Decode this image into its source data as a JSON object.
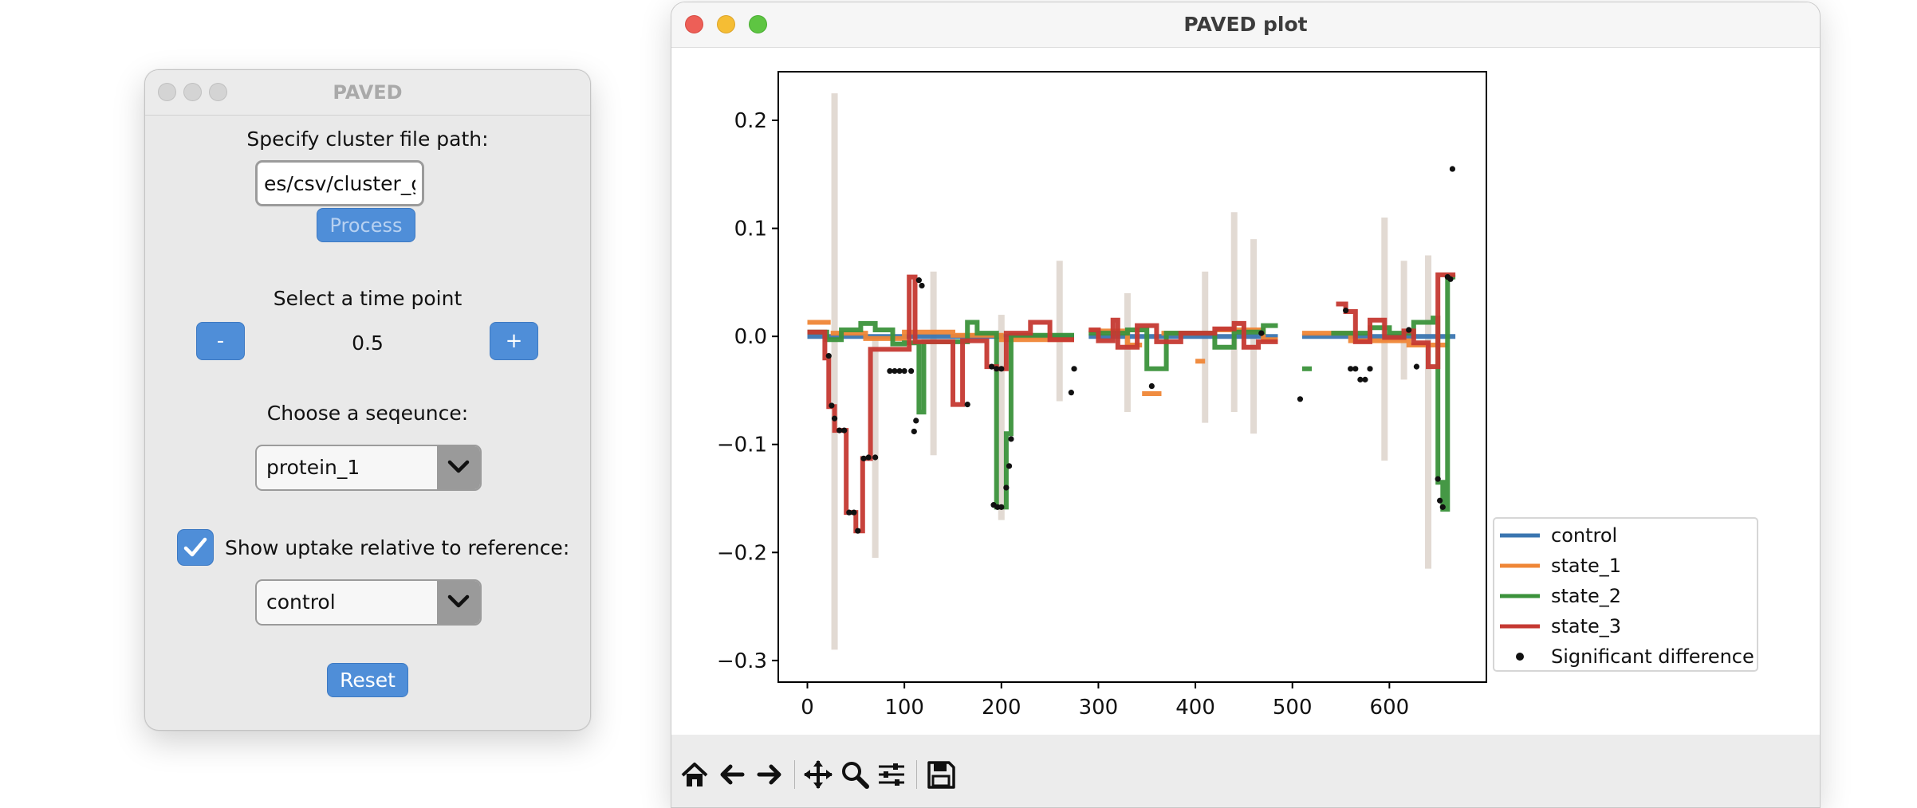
{
  "control_window": {
    "title": "PAVED",
    "cluster_label": "Specify cluster file path:",
    "cluster_path_value": "es/csv/cluster_g.csv",
    "process_label": "Process",
    "time_label": "Select a time point",
    "minus_label": "-",
    "time_value": "0.5",
    "plus_label": "+",
    "sequence_label": "Choose a seqeunce:",
    "sequence_selected": "protein_1",
    "relative_checked": true,
    "relative_label": "Show uptake relative to reference:",
    "reference_selected": "control",
    "reset_label": "Reset"
  },
  "plot_window": {
    "title": "PAVED plot",
    "toolbar": [
      "home-icon",
      "back-arrow-icon",
      "forward-arrow-icon",
      "pan-icon",
      "zoom-icon",
      "configure-subplots-icon",
      "save-icon"
    ]
  },
  "chart_data": {
    "type": "line",
    "title": "",
    "xlabel": "",
    "ylabel": "",
    "xlim": [
      -30,
      700
    ],
    "ylim": [
      -0.32,
      0.245
    ],
    "xticks": [
      0,
      100,
      200,
      300,
      400,
      500,
      600
    ],
    "yticks": [
      0.2,
      0.1,
      0.0,
      -0.1,
      -0.2,
      -0.3
    ],
    "ytick_labels": [
      "0.2",
      "0.1",
      "0.0",
      "−0.1",
      "−0.2",
      "−0.3"
    ],
    "grid": false,
    "legend_position": "outside-right-bottom",
    "colors": {
      "control": "#3a75b0",
      "state_1": "#ef8636",
      "state_2": "#3b923b",
      "state_3": "#c53932",
      "significant": "#111111",
      "band": "#bfae9e"
    },
    "series": [
      {
        "name": "control",
        "segments": [
          [
            [
              0,
              0.0
            ],
            [
              275,
              0.0
            ]
          ],
          [
            [
              290,
              0.0
            ],
            [
              485,
              0.0
            ]
          ],
          [
            [
              510,
              0.0
            ],
            [
              668,
              0.0
            ]
          ]
        ]
      },
      {
        "name": "state_1",
        "segments": [
          [
            [
              0,
              0.013
            ],
            [
              24,
              0.013
            ]
          ],
          [
            [
              24,
              0.003
            ],
            [
              60,
              0.003
            ],
            [
              60,
              -0.002
            ],
            [
              100,
              -0.002
            ],
            [
              100,
              0.004
            ],
            [
              150,
              0.004
            ],
            [
              150,
              0.001
            ],
            [
              200,
              0.001
            ],
            [
              200,
              -0.003
            ],
            [
              275,
              -0.003
            ]
          ],
          [
            [
              290,
              0.005
            ],
            [
              330,
              0.005
            ],
            [
              330,
              -0.008
            ],
            [
              345,
              -0.008
            ]
          ],
          [
            [
              345,
              -0.053
            ],
            [
              365,
              -0.053
            ]
          ],
          [
            [
              365,
              0.003
            ],
            [
              400,
              0.003
            ]
          ],
          [
            [
              400,
              -0.023
            ],
            [
              410,
              -0.023
            ]
          ],
          [
            [
              420,
              0.006
            ],
            [
              470,
              0.006
            ],
            [
              470,
              -0.003
            ],
            [
              485,
              -0.003
            ]
          ],
          [
            [
              510,
              0.003
            ],
            [
              560,
              0.003
            ],
            [
              560,
              -0.004
            ],
            [
              620,
              -0.004
            ],
            [
              620,
              -0.008
            ],
            [
              660,
              -0.008
            ]
          ]
        ]
      },
      {
        "name": "state_2",
        "segments": [
          [
            [
              0,
              0.004
            ],
            [
              20,
              0.004
            ],
            [
              20,
              -0.003
            ],
            [
              35,
              -0.003
            ],
            [
              35,
              0.006
            ],
            [
              55,
              0.006
            ],
            [
              55,
              0.012
            ],
            [
              70,
              0.012
            ],
            [
              70,
              0.006
            ],
            [
              88,
              0.006
            ],
            [
              88,
              -0.007
            ],
            [
              100,
              -0.007
            ],
            [
              100,
              -0.006
            ],
            [
              115,
              -0.006
            ],
            [
              115,
              -0.07
            ],
            [
              120,
              -0.07
            ],
            [
              120,
              -0.005
            ],
            [
              165,
              -0.005
            ],
            [
              165,
              0.013
            ],
            [
              175,
              0.013
            ],
            [
              175,
              0.003
            ],
            [
              195,
              0.003
            ],
            [
              195,
              -0.158
            ],
            [
              205,
              -0.158
            ],
            [
              205,
              -0.09
            ],
            [
              210,
              -0.09
            ],
            [
              210,
              0.001
            ],
            [
              275,
              0.001
            ]
          ],
          [
            [
              290,
              0.003
            ],
            [
              330,
              0.003
            ],
            [
              330,
              0.006
            ],
            [
              350,
              0.006
            ],
            [
              350,
              -0.03
            ],
            [
              370,
              -0.03
            ],
            [
              370,
              0.003
            ],
            [
              420,
              0.003
            ],
            [
              420,
              -0.01
            ],
            [
              440,
              -0.01
            ],
            [
              440,
              0.004
            ],
            [
              470,
              0.004
            ],
            [
              470,
              0.01
            ],
            [
              485,
              0.01
            ]
          ],
          [
            [
              510,
              -0.03
            ],
            [
              520,
              -0.03
            ]
          ],
          [
            [
              540,
              0.003
            ],
            [
              580,
              0.003
            ],
            [
              580,
              0.008
            ],
            [
              600,
              0.008
            ],
            [
              600,
              0.003
            ],
            [
              625,
              0.003
            ],
            [
              625,
              0.013
            ],
            [
              645,
              0.013
            ],
            [
              645,
              0.017
            ],
            [
              650,
              0.017
            ],
            [
              650,
              -0.135
            ],
            [
              655,
              -0.135
            ],
            [
              655,
              -0.16
            ],
            [
              660,
              -0.16
            ],
            [
              660,
              0.055
            ],
            [
              668,
              0.055
            ]
          ]
        ]
      },
      {
        "name": "state_3",
        "segments": [
          [
            [
              0,
              0.004
            ],
            [
              18,
              0.004
            ],
            [
              18,
              -0.02
            ],
            [
              22,
              -0.02
            ],
            [
              22,
              -0.065
            ],
            [
              28,
              -0.065
            ],
            [
              28,
              -0.087
            ],
            [
              40,
              -0.087
            ],
            [
              40,
              -0.163
            ],
            [
              50,
              -0.163
            ],
            [
              50,
              -0.18
            ],
            [
              57,
              -0.18
            ],
            [
              57,
              -0.113
            ],
            [
              65,
              -0.113
            ],
            [
              65,
              -0.012
            ],
            [
              105,
              -0.012
            ],
            [
              105,
              0.055
            ],
            [
              111,
              0.055
            ],
            [
              111,
              -0.005
            ],
            [
              150,
              -0.005
            ],
            [
              150,
              -0.063
            ],
            [
              160,
              -0.063
            ],
            [
              160,
              -0.004
            ],
            [
              185,
              -0.004
            ],
            [
              185,
              -0.028
            ],
            [
              195,
              -0.028
            ],
            [
              195,
              -0.03
            ],
            [
              205,
              -0.03
            ],
            [
              205,
              0.003
            ],
            [
              230,
              0.003
            ],
            [
              230,
              0.013
            ],
            [
              250,
              0.013
            ],
            [
              250,
              -0.003
            ],
            [
              275,
              -0.003
            ]
          ],
          [
            [
              290,
              0.006
            ],
            [
              300,
              0.006
            ],
            [
              300,
              -0.004
            ],
            [
              315,
              -0.004
            ],
            [
              315,
              0.015
            ],
            [
              320,
              0.015
            ],
            [
              320,
              -0.01
            ],
            [
              340,
              -0.01
            ],
            [
              340,
              0.01
            ],
            [
              360,
              0.01
            ],
            [
              360,
              -0.005
            ],
            [
              385,
              -0.005
            ],
            [
              385,
              0.003
            ],
            [
              420,
              0.003
            ],
            [
              420,
              0.007
            ],
            [
              440,
              0.007
            ],
            [
              440,
              0.012
            ],
            [
              450,
              0.012
            ],
            [
              450,
              -0.01
            ],
            [
              465,
              -0.01
            ],
            [
              465,
              -0.005
            ],
            [
              485,
              -0.005
            ]
          ],
          [
            [
              545,
              0.03
            ],
            [
              555,
              0.03
            ],
            [
              555,
              0.023
            ],
            [
              565,
              0.023
            ],
            [
              565,
              -0.005
            ],
            [
              580,
              -0.005
            ],
            [
              580,
              0.015
            ],
            [
              595,
              0.015
            ],
            [
              595,
              -0.001
            ],
            [
              615,
              -0.001
            ],
            [
              615,
              0.005
            ],
            [
              625,
              0.005
            ],
            [
              625,
              -0.006
            ],
            [
              640,
              -0.006
            ],
            [
              640,
              -0.028
            ],
            [
              650,
              -0.028
            ],
            [
              650,
              0.057
            ],
            [
              668,
              0.057
            ]
          ]
        ]
      }
    ],
    "significant_points": [
      [
        22,
        -0.018
      ],
      [
        25,
        -0.064
      ],
      [
        28,
        -0.076
      ],
      [
        33,
        -0.087
      ],
      [
        38,
        -0.087
      ],
      [
        43,
        -0.163
      ],
      [
        48,
        -0.163
      ],
      [
        52,
        -0.18
      ],
      [
        58,
        -0.113
      ],
      [
        63,
        -0.112
      ],
      [
        70,
        -0.112
      ],
      [
        85,
        -0.032
      ],
      [
        90,
        -0.032
      ],
      [
        95,
        -0.032
      ],
      [
        100,
        -0.032
      ],
      [
        107,
        -0.032
      ],
      [
        110,
        -0.088
      ],
      [
        112,
        -0.078
      ],
      [
        115,
        0.052
      ],
      [
        118,
        0.047
      ],
      [
        165,
        -0.063
      ],
      [
        190,
        -0.028
      ],
      [
        195,
        -0.03
      ],
      [
        200,
        -0.03
      ],
      [
        192,
        -0.156
      ],
      [
        196,
        -0.158
      ],
      [
        200,
        -0.158
      ],
      [
        205,
        -0.14
      ],
      [
        208,
        -0.12
      ],
      [
        210,
        -0.095
      ],
      [
        275,
        -0.03
      ],
      [
        272,
        -0.052
      ],
      [
        355,
        -0.046
      ],
      [
        468,
        0.003
      ],
      [
        508,
        -0.058
      ],
      [
        555,
        0.024
      ],
      [
        560,
        -0.03
      ],
      [
        565,
        -0.03
      ],
      [
        570,
        -0.04
      ],
      [
        575,
        -0.04
      ],
      [
        580,
        -0.03
      ],
      [
        620,
        0.006
      ],
      [
        628,
        -0.028
      ],
      [
        650,
        -0.132
      ],
      [
        652,
        -0.152
      ],
      [
        655,
        -0.158
      ],
      [
        660,
        0.055
      ],
      [
        663,
        0.053
      ],
      [
        665,
        0.155
      ]
    ],
    "uncertainty_bands": [
      [
        28,
        0.225,
        -0.29
      ],
      [
        70,
        0.0,
        -0.205
      ],
      [
        130,
        0.06,
        -0.11
      ],
      [
        200,
        0.02,
        -0.17
      ],
      [
        260,
        0.07,
        -0.06
      ],
      [
        330,
        0.04,
        -0.07
      ],
      [
        410,
        0.06,
        -0.08
      ],
      [
        440,
        0.115,
        -0.07
      ],
      [
        460,
        0.09,
        -0.09
      ],
      [
        595,
        0.11,
        -0.115
      ],
      [
        615,
        0.07,
        -0.04
      ],
      [
        640,
        0.075,
        -0.215
      ]
    ],
    "legend": [
      {
        "label": "control",
        "kind": "line",
        "color": "#3a75b0"
      },
      {
        "label": "state_1",
        "kind": "line",
        "color": "#ef8636"
      },
      {
        "label": "state_2",
        "kind": "line",
        "color": "#3b923b"
      },
      {
        "label": "state_3",
        "kind": "line",
        "color": "#c53932"
      },
      {
        "label": "Significant difference",
        "kind": "dot",
        "color": "#111111"
      }
    ]
  }
}
